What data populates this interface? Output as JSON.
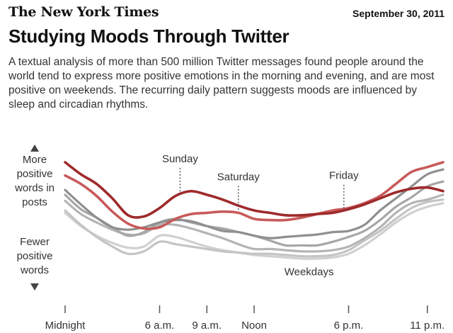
{
  "header": {
    "masthead": "The New York Times",
    "date": "September 30, 2011"
  },
  "title": "Studying Moods Through Twitter",
  "subtitle": "A textual analysis of more than 500 million Twitter messages found people around the world tend to express more positive emotions in the morning and evening, and are most positive on weekends. The recurring daily pattern suggests moods are influenced by sleep and circadian rhythms.",
  "chart_data": {
    "type": "line",
    "x_unit": "hour of day",
    "x": [
      0,
      1,
      2,
      3,
      4,
      5,
      6,
      7,
      8,
      9,
      10,
      11,
      12,
      13,
      14,
      15,
      16,
      17,
      18,
      19,
      20,
      21,
      22,
      23,
      24
    ],
    "xticks": [
      {
        "hour": 0,
        "label": "Midnight"
      },
      {
        "hour": 6,
        "label": "6 a.m."
      },
      {
        "hour": 9,
        "label": "9 a.m."
      },
      {
        "hour": 12,
        "label": "Noon"
      },
      {
        "hour": 18,
        "label": "6 p.m."
      },
      {
        "hour": 23,
        "label": "11 p.m."
      }
    ],
    "y_scale": "relative positivity (unlabeled)",
    "ylim": [
      0,
      100
    ],
    "y_axis_labels": {
      "top": "More positive words in posts",
      "bottom": "Fewer positive words"
    },
    "series": [
      {
        "name": "Sunday",
        "color": "#9e2a2b",
        "emphasis": true,
        "values": [
          90,
          80,
          72,
          60,
          46,
          45,
          52,
          62,
          66,
          63,
          59,
          54,
          50,
          48,
          46,
          46,
          47,
          48,
          51,
          55,
          60,
          65,
          68,
          69,
          66
        ]
      },
      {
        "name": "Saturday",
        "color": "#c85a5a",
        "emphasis": true,
        "values": [
          79,
          72,
          62,
          49,
          39,
          35,
          36,
          43,
          47,
          48,
          49,
          48,
          43,
          42,
          42,
          44,
          47,
          50,
          52,
          56,
          62,
          72,
          82,
          86,
          90
        ]
      },
      {
        "name": "Weekdays",
        "color": "#8f8f8f",
        "values": [
          67,
          55,
          44,
          36,
          34,
          36,
          40,
          42,
          41,
          37,
          33,
          32,
          29,
          27,
          28,
          29,
          30,
          32,
          33,
          38,
          50,
          60,
          70,
          80,
          84
        ]
      },
      {
        "name": "Weekdays",
        "color": "#a6a6a6",
        "values": [
          63,
          51,
          44,
          36,
          29,
          32,
          40,
          43,
          40,
          37,
          35,
          32,
          29,
          25,
          21,
          21,
          21,
          24,
          28,
          33,
          42,
          53,
          61,
          70,
          74
        ]
      },
      {
        "name": "Weekdays",
        "color": "#b4b4b4",
        "values": [
          58,
          47,
          40,
          34,
          30,
          31,
          38,
          38,
          35,
          31,
          27,
          22,
          18,
          18,
          17,
          16,
          16,
          17,
          20,
          27,
          36,
          48,
          56,
          59,
          63
        ]
      },
      {
        "name": "Weekdays",
        "color": "#c4c4c4",
        "values": [
          50,
          38,
          28,
          20,
          14,
          16,
          24,
          22,
          20,
          18,
          16,
          15,
          14,
          14,
          13,
          12,
          12,
          13,
          17,
          25,
          33,
          43,
          52,
          57,
          59
        ]
      },
      {
        "name": "Weekdays",
        "color": "#d0d0d0",
        "values": [
          48,
          37,
          29,
          23,
          19,
          20,
          29,
          28,
          24,
          20,
          17,
          15,
          13,
          12,
          11,
          10,
          10,
          11,
          14,
          21,
          30,
          40,
          48,
          53,
          56
        ]
      }
    ],
    "annotations": [
      {
        "label": "Sunday",
        "hour": 7.3,
        "value": 63
      },
      {
        "label": "Saturday",
        "hour": 11,
        "value": 48
      },
      {
        "label": "Friday",
        "hour": 17.7,
        "value": 49
      },
      {
        "label": "Weekdays",
        "hour": 14.5,
        "value": 8
      }
    ],
    "grid": false
  }
}
